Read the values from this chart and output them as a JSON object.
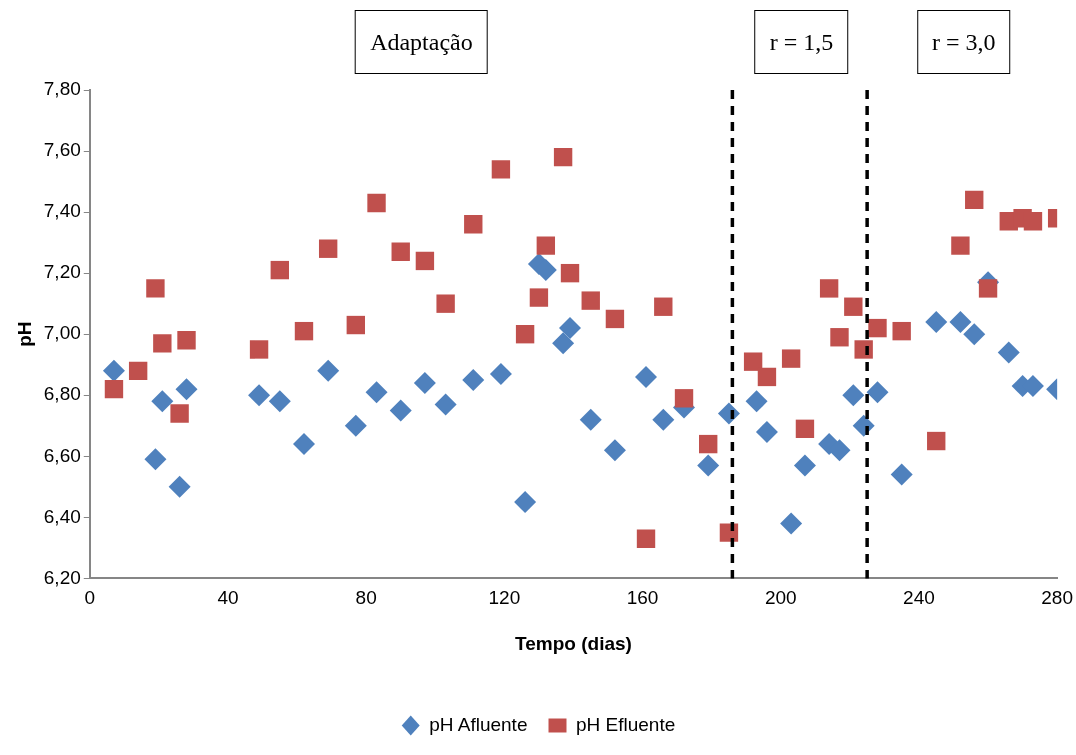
{
  "chart_data": {
    "type": "scatter",
    "xlabel": "Tempo (dias)",
    "ylabel": "pH",
    "xlim": [
      0,
      280
    ],
    "xticks": [
      0,
      40,
      80,
      120,
      160,
      200,
      240,
      280
    ],
    "ylim": [
      6.2,
      7.8
    ],
    "yticks": [
      {
        "value": 6.2,
        "label": "6,20"
      },
      {
        "value": 6.4,
        "label": "6,40"
      },
      {
        "value": 6.6,
        "label": "6,60"
      },
      {
        "value": 6.8,
        "label": "6,80"
      },
      {
        "value": 7.0,
        "label": "7,00"
      },
      {
        "value": 7.2,
        "label": "7,20"
      },
      {
        "value": 7.4,
        "label": "7,40"
      },
      {
        "value": 7.6,
        "label": "7,60"
      },
      {
        "value": 7.8,
        "label": "7,80"
      }
    ],
    "grid": false,
    "legend": "bottom",
    "series": [
      {
        "name": "pH Afluente",
        "color": "#4f81bd",
        "marker": "diamond",
        "x": [
          7,
          21,
          19,
          28,
          26,
          49,
          55,
          62,
          69,
          77,
          83,
          90,
          97,
          103,
          111,
          119,
          126,
          130,
          132,
          137,
          139,
          145,
          152,
          161,
          166,
          172,
          179,
          185,
          193,
          196,
          203,
          207,
          214,
          217,
          221,
          224,
          228,
          235,
          245,
          252,
          256,
          260,
          266,
          270,
          273,
          280
        ],
        "values": [
          6.88,
          6.78,
          6.59,
          6.82,
          6.5,
          6.8,
          6.78,
          6.64,
          6.88,
          6.7,
          6.81,
          6.75,
          6.84,
          6.77,
          6.85,
          6.87,
          6.45,
          7.23,
          7.21,
          6.97,
          7.02,
          6.72,
          6.62,
          6.86,
          6.72,
          6.76,
          6.57,
          6.74,
          6.78,
          6.68,
          6.38,
          6.57,
          6.64,
          6.62,
          6.8,
          6.7,
          6.81,
          6.54,
          7.04,
          7.04,
          7.0,
          7.17,
          6.94,
          6.83,
          6.83,
          6.82
        ]
      },
      {
        "name": "pH Efluente",
        "color": "#c0504d",
        "marker": "square",
        "x": [
          7,
          14,
          19,
          21,
          26,
          28,
          49,
          55,
          62,
          69,
          77,
          83,
          90,
          97,
          103,
          111,
          119,
          126,
          130,
          132,
          137,
          139,
          145,
          152,
          161,
          166,
          172,
          179,
          185,
          192,
          196,
          203,
          207,
          214,
          217,
          221,
          224,
          228,
          235,
          245,
          252,
          256,
          260,
          266,
          270,
          273,
          280
        ],
        "values": [
          6.82,
          6.88,
          7.15,
          6.97,
          6.74,
          6.98,
          6.95,
          7.21,
          7.01,
          7.28,
          7.03,
          7.43,
          7.27,
          7.24,
          7.1,
          7.36,
          7.54,
          7.0,
          7.12,
          7.29,
          7.58,
          7.2,
          7.11,
          7.05,
          6.33,
          7.09,
          6.79,
          6.64,
          6.35,
          6.91,
          6.86,
          6.92,
          6.69,
          7.15,
          6.99,
          7.09,
          6.95,
          7.02,
          7.01,
          6.65,
          7.29,
          7.44,
          7.15,
          7.37,
          7.38,
          7.37,
          7.38
        ]
      }
    ],
    "ref_lines": [
      {
        "axis": "x",
        "value": 186,
        "color": "#000000",
        "line_style": "dashed"
      },
      {
        "axis": "x",
        "value": 225,
        "color": "#000000",
        "line_style": "dashed"
      }
    ],
    "annotations": [
      "Adaptação",
      "r = 1,5",
      "r = 3,0"
    ]
  }
}
